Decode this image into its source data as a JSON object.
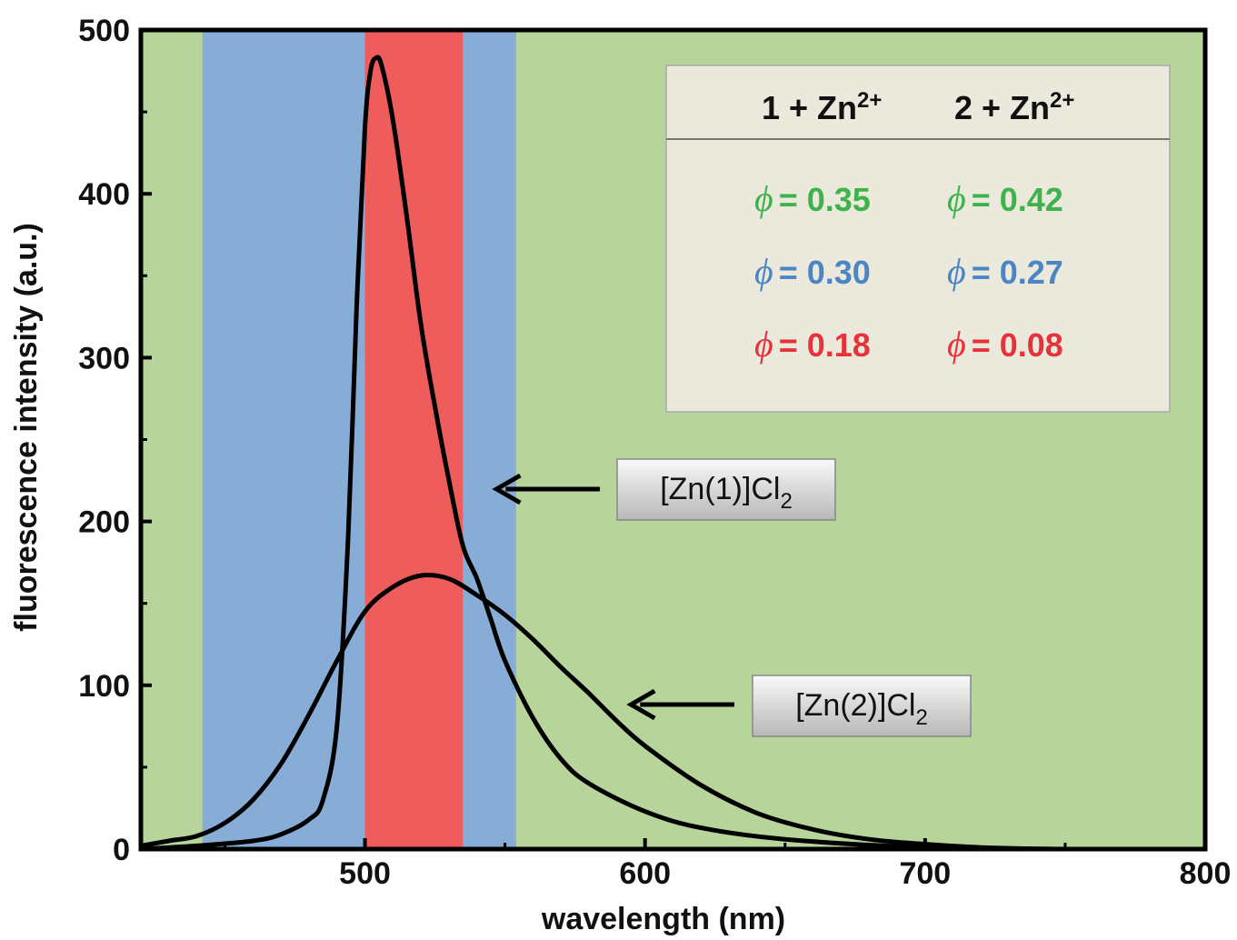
{
  "chart_data": {
    "type": "line",
    "xlabel": "wavelength (nm)",
    "ylabel": "fluorescence intensity (a.u.)",
    "xlim": [
      420,
      800
    ],
    "ylim": [
      0,
      500
    ],
    "x_ticks": [
      500,
      600,
      700,
      800
    ],
    "x_tick_labels": [
      "500",
      "600",
      "700",
      "800"
    ],
    "y_ticks": [
      0,
      100,
      200,
      300,
      400,
      500
    ],
    "y_tick_labels": [
      "0",
      "100",
      "200",
      "300",
      "400",
      "500"
    ],
    "background_bands": [
      {
        "from": 420,
        "to": 442,
        "color": "#b7d59b"
      },
      {
        "from": 442,
        "to": 500,
        "color": "#87add6"
      },
      {
        "from": 500,
        "to": 535,
        "color": "#ee5c5c"
      },
      {
        "from": 535,
        "to": 554,
        "color": "#87add6"
      },
      {
        "from": 554,
        "to": 800,
        "color": "#b7d59b"
      }
    ],
    "series": [
      {
        "name": "[Zn(1)]Cl2",
        "x": [
          420,
          440,
          460,
          470,
          480,
          485,
          490,
          494,
          497,
          500,
          502,
          504,
          506,
          510,
          515,
          520,
          525,
          530,
          535,
          540,
          545,
          550,
          560,
          570,
          580,
          600,
          620,
          650,
          700,
          750,
          800
        ],
        "y": [
          0,
          2,
          5,
          9,
          18,
          30,
          75,
          190,
          330,
          440,
          475,
          483,
          478,
          445,
          385,
          320,
          270,
          225,
          185,
          165,
          140,
          115,
          80,
          55,
          40,
          23,
          13,
          6,
          1,
          0,
          0
        ]
      },
      {
        "name": "[Zn(2)]Cl2",
        "x": [
          420,
          430,
          440,
          450,
          460,
          470,
          480,
          490,
          500,
          510,
          520,
          530,
          540,
          550,
          560,
          570,
          580,
          590,
          600,
          620,
          640,
          660,
          680,
          700,
          720,
          750,
          800
        ],
        "y": [
          2,
          5,
          8,
          16,
          30,
          52,
          82,
          115,
          145,
          160,
          167,
          165,
          155,
          143,
          128,
          111,
          95,
          78,
          63,
          39,
          22,
          12,
          6,
          3,
          1,
          0,
          0
        ]
      }
    ],
    "callouts": [
      {
        "label_main": "[Zn(1)]Cl",
        "label_sub": "2",
        "arrow_to_x": 547,
        "arrow_to_y": 220
      },
      {
        "label_main": "[Zn(2)]Cl",
        "label_sub": "2",
        "arrow_to_x": 595,
        "arrow_to_y": 88
      }
    ],
    "table": {
      "columns": [
        {
          "prefix": "1 + Zn",
          "sup": "2+"
        },
        {
          "prefix": "2 + Zn",
          "sup": "2+"
        }
      ],
      "rows": [
        {
          "color": "#3cb44b",
          "symbol": "ϕ",
          "values": [
            "= 0.35",
            "= 0.42"
          ]
        },
        {
          "color": "#4a86c5",
          "symbol": "ϕ",
          "values": [
            "= 0.30",
            "= 0.27"
          ]
        },
        {
          "color": "#e8323a",
          "symbol": "ϕ",
          "values": [
            "= 0.18",
            "= 0.08"
          ]
        }
      ]
    }
  }
}
